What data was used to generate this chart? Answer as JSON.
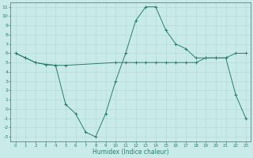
{
  "line1_x": [
    0,
    1,
    2,
    3,
    4,
    5,
    10,
    11,
    12,
    13,
    14,
    15,
    16,
    17,
    18,
    19,
    20,
    21,
    22,
    23
  ],
  "line1_y": [
    6,
    5.5,
    5,
    4.8,
    4.7,
    4.7,
    5.0,
    5.0,
    5.0,
    5.0,
    5.0,
    5.0,
    5.0,
    5.0,
    5.0,
    5.5,
    5.5,
    5.5,
    6.0,
    6.0
  ],
  "line2_x": [
    0,
    1,
    2,
    3,
    4,
    5,
    6,
    7,
    8,
    9,
    10,
    11,
    12,
    13,
    14,
    15,
    16,
    17,
    18,
    19,
    20,
    21,
    22,
    23
  ],
  "line2_y": [
    6,
    5.5,
    5,
    4.8,
    4.7,
    0.5,
    -0.5,
    -2.5,
    -3.0,
    -0.5,
    3.0,
    6.0,
    9.5,
    11.0,
    11.0,
    8.5,
    7.0,
    6.5,
    5.5,
    5.5,
    5.5,
    5.5,
    1.5,
    -1.0
  ],
  "line_color": "#2d7d6e",
  "bg_color": "#c8eae8",
  "grid_color": "#b0d8d4",
  "xlabel": "Humidex (Indice chaleur)",
  "xlim": [
    -0.5,
    23.5
  ],
  "ylim": [
    -3.5,
    11.5
  ],
  "yticks": [
    -3,
    -2,
    -1,
    0,
    1,
    2,
    3,
    4,
    5,
    6,
    7,
    8,
    9,
    10,
    11
  ],
  "xticks": [
    0,
    1,
    2,
    3,
    4,
    5,
    6,
    7,
    8,
    9,
    10,
    11,
    12,
    13,
    14,
    15,
    16,
    17,
    18,
    19,
    20,
    21,
    22,
    23
  ]
}
